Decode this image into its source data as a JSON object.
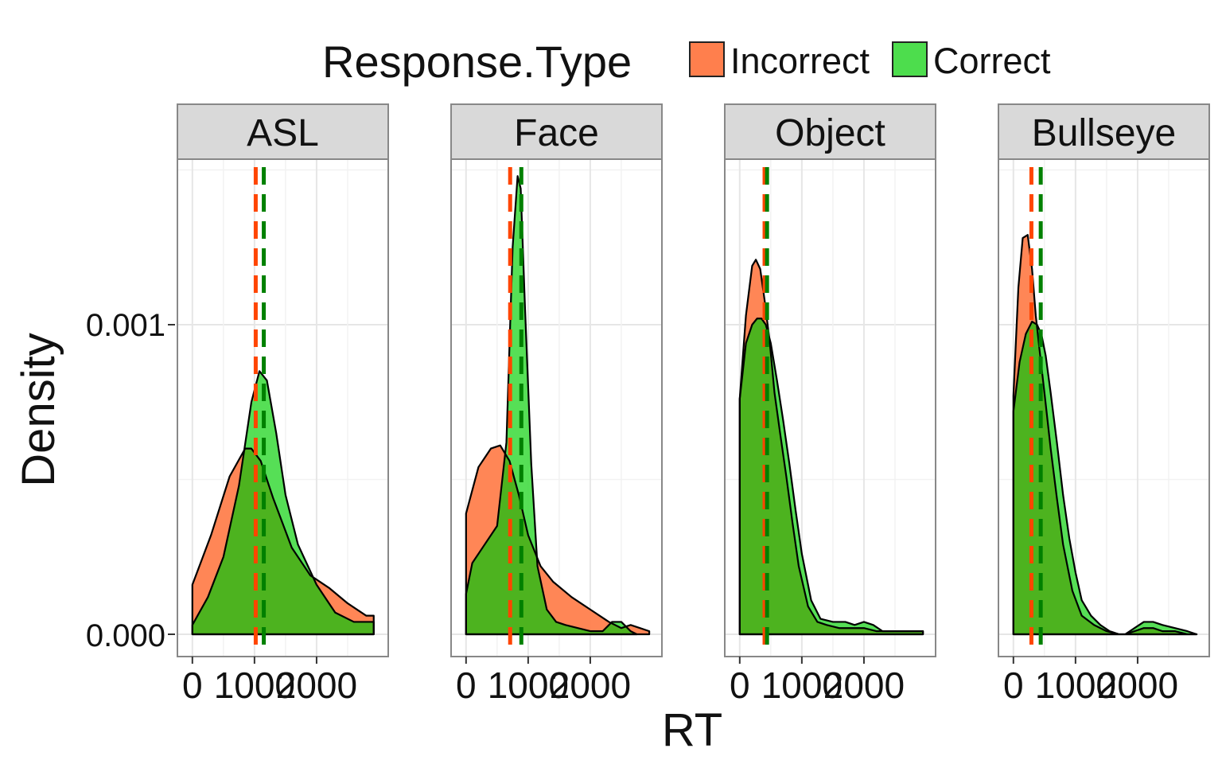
{
  "legend": {
    "title": "Response.Type",
    "items": [
      {
        "label": "Incorrect",
        "color": "#FF7F4D"
      },
      {
        "label": "Correct",
        "color": "#4DDD4D"
      }
    ]
  },
  "axes": {
    "xlabel": "RT",
    "ylabel": "Density",
    "y_tick_labels": [
      "0.000",
      "0.001"
    ],
    "x_tick_labels": [
      "0",
      "1000",
      "2000"
    ]
  },
  "chart_data": {
    "type": "area",
    "xlabel": "RT",
    "ylabel": "Density",
    "xlim": [
      -100,
      3000
    ],
    "ylim": [
      -7e-05,
      0.00151
    ],
    "x_ticks": [
      0,
      1000,
      2000
    ],
    "y_ticks": [
      0,
      0.001
    ],
    "grid": true,
    "legend_position": "top",
    "colors": {
      "Incorrect": "#FF7F4D",
      "Correct": "#4DDD4D",
      "overlap": "#4DB31F",
      "mean_incorrect": "#FF4500",
      "mean_correct": "#008000"
    },
    "panels": [
      {
        "name": "ASL",
        "series": [
          {
            "name": "Incorrect",
            "mean": 1020,
            "x": [
              0,
              300,
              600,
              850,
              950,
              1100,
              1300,
              1600,
              1900,
              2200,
              2500,
              2800,
              2920
            ],
            "y": [
              0.00016,
              0.00032,
              0.00051,
              0.0006,
              0.0006,
              0.00056,
              0.00044,
              0.00028,
              0.00019,
              0.00015,
              0.0001,
              6e-05,
              6e-05
            ]
          },
          {
            "name": "Correct",
            "mean": 1150,
            "x": [
              0,
              250,
              500,
              750,
              950,
              1080,
              1200,
              1350,
              1500,
              1700,
              2000,
              2300,
              2600,
              2920
            ],
            "y": [
              3e-05,
              0.00012,
              0.00025,
              0.00048,
              0.00075,
              0.00085,
              0.00082,
              0.00065,
              0.00045,
              0.00029,
              0.00016,
              7e-05,
              4e-05,
              4e-05
            ]
          }
        ]
      },
      {
        "name": "Face",
        "series": [
          {
            "name": "Incorrect",
            "mean": 710,
            "x": [
              0,
              200,
              400,
              550,
              700,
              850,
              1000,
              1200,
              1400,
              1700,
              2000,
              2300,
              2500,
              2650,
              2800,
              2950
            ],
            "y": [
              0.00039,
              0.00054,
              0.0006,
              0.00061,
              0.00056,
              0.00045,
              0.00032,
              0.00022,
              0.00017,
              0.00012,
              8e-05,
              4e-05,
              2e-05,
              3e-05,
              2e-05,
              1e-05
            ]
          },
          {
            "name": "Correct",
            "mean": 890,
            "x": [
              0,
              100,
              300,
              500,
              650,
              750,
              830,
              880,
              950,
              1050,
              1150,
              1300,
              1450,
              1600,
              1800,
              2000,
              2200,
              2350,
              2500,
              2650,
              2750
            ],
            "y": [
              0.00013,
              0.00023,
              0.00029,
              0.00035,
              0.00062,
              0.00125,
              0.00148,
              0.00144,
              0.00105,
              0.00055,
              0.00022,
              8e-05,
              4e-05,
              3e-05,
              2e-05,
              1e-05,
              1e-05,
              4e-05,
              4e-05,
              1e-05,
              0
            ]
          }
        ]
      },
      {
        "name": "Object",
        "series": [
          {
            "name": "Incorrect",
            "mean": 400,
            "x": [
              0,
              100,
              200,
              260,
              330,
              400,
              480,
              560,
              650,
              750,
              850,
              950,
              1100,
              1250,
              1400,
              1600,
              1800,
              2000,
              2200,
              2500,
              2800,
              2950
            ],
            "y": [
              0.00076,
              0.00103,
              0.00119,
              0.00121,
              0.00118,
              0.00108,
              0.00095,
              0.00078,
              0.00065,
              0.00051,
              0.00036,
              0.00022,
              9e-05,
              4e-05,
              3e-05,
              2e-05,
              2e-05,
              2e-05,
              1e-05,
              1e-05,
              1e-05,
              1e-05
            ]
          },
          {
            "name": "Correct",
            "mean": 440,
            "x": [
              0,
              100,
              200,
              280,
              350,
              420,
              500,
              600,
              700,
              800,
              900,
              1000,
              1150,
              1300,
              1500,
              1700,
              1850,
              2000,
              2150,
              2300,
              2500,
              2700,
              2950
            ],
            "y": [
              0.00076,
              0.00094,
              0.001,
              0.00102,
              0.00102,
              0.001,
              0.00094,
              0.00082,
              0.00069,
              0.00055,
              0.0004,
              0.00026,
              0.00011,
              5e-05,
              4e-05,
              4e-05,
              3e-05,
              4e-05,
              3e-05,
              1e-05,
              1e-05,
              1e-05,
              1e-05
            ]
          }
        ]
      },
      {
        "name": "Bullseye",
        "series": [
          {
            "name": "Incorrect",
            "mean": 290,
            "x": [
              0,
              80,
              150,
              230,
              300,
              360,
              420,
              500,
              600,
              700,
              800,
              950,
              1100,
              1300,
              1500,
              1700,
              1800,
              1950,
              2100,
              2250,
              2400,
              2600,
              2800,
              2950
            ],
            "y": [
              0.00077,
              0.00112,
              0.00128,
              0.00129,
              0.00118,
              0.00103,
              0.00092,
              0.00078,
              0.0006,
              0.00044,
              0.00029,
              0.00014,
              6e-05,
              3e-05,
              1e-05,
              0,
              0,
              1e-05,
              2e-05,
              2e-05,
              1e-05,
              1e-05,
              0,
              0
            ]
          },
          {
            "name": "Correct",
            "mean": 440,
            "x": [
              0,
              100,
              200,
              300,
              380,
              450,
              520,
              600,
              700,
              800,
              900,
              1000,
              1100,
              1250,
              1400,
              1550,
              1700,
              1800,
              1950,
              2100,
              2250,
              2400,
              2600,
              2800,
              2950
            ],
            "y": [
              0.00072,
              0.00088,
              0.00097,
              0.00101,
              0.001,
              0.00097,
              0.0009,
              0.00078,
              0.00062,
              0.00045,
              0.00031,
              0.0002,
              0.00011,
              6e-05,
              3e-05,
              1e-05,
              0,
              0,
              2e-05,
              4e-05,
              4e-05,
              3e-05,
              2e-05,
              1e-05,
              0
            ]
          }
        ]
      }
    ]
  }
}
